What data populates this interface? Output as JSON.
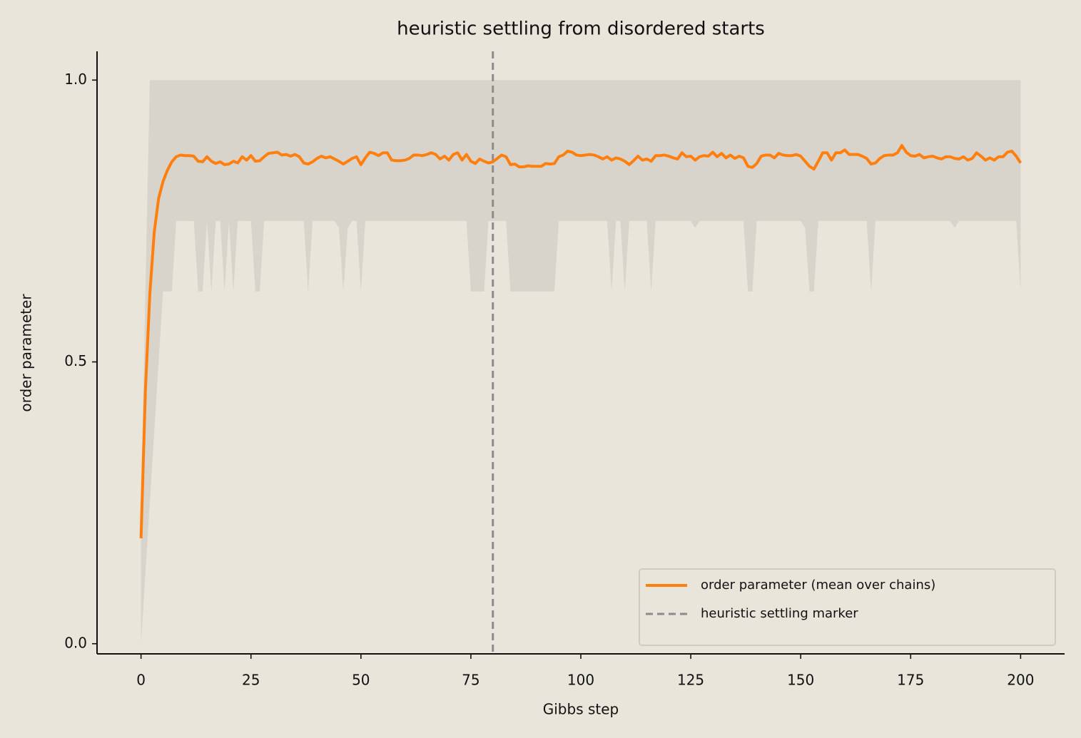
{
  "chart_data": {
    "type": "line",
    "title": "heuristic settling from disordered starts",
    "xlabel": "Gibbs step",
    "ylabel": "order parameter",
    "xlim": [
      -10,
      210
    ],
    "ylim": [
      -0.018,
      1.051
    ],
    "xticks": [
      0,
      25,
      50,
      75,
      100,
      125,
      150,
      175,
      200
    ],
    "yticks": [
      {
        "value": 0,
        "label": "0.0"
      },
      0.5,
      {
        "value": 1,
        "label": "1.0"
      }
    ],
    "legend": "lower right",
    "x": [
      0,
      1,
      2,
      3,
      4,
      5,
      6,
      7,
      8,
      9,
      10,
      11,
      12,
      13,
      14,
      15,
      16,
      17,
      18,
      19,
      20,
      21,
      22,
      23,
      24,
      25,
      26,
      27,
      28,
      29,
      30,
      31,
      32,
      33,
      34,
      35,
      36,
      37,
      38,
      39,
      40,
      41,
      42,
      43,
      44,
      45,
      46,
      47,
      48,
      49,
      50,
      51,
      52,
      53,
      54,
      55,
      56,
      57,
      58,
      59,
      60,
      61,
      62,
      63,
      64,
      65,
      66,
      67,
      68,
      69,
      70,
      71,
      72,
      73,
      74,
      75,
      76,
      77,
      78,
      79,
      80,
      81,
      82,
      83,
      84,
      85,
      86,
      87,
      88,
      89,
      90,
      91,
      92,
      93,
      94,
      95,
      96,
      97,
      98,
      99,
      100,
      101,
      102,
      103,
      104,
      105,
      106,
      107,
      108,
      109,
      110,
      111,
      112,
      113,
      114,
      115,
      116,
      117,
      118,
      119,
      120,
      121,
      122,
      123,
      124,
      125,
      126,
      127,
      128,
      129,
      130,
      131,
      132,
      133,
      134,
      135,
      136,
      137,
      138,
      139,
      140,
      141,
      142,
      143,
      144,
      145,
      146,
      147,
      148,
      149,
      150,
      151,
      152,
      153,
      154,
      155,
      156,
      157,
      158,
      159,
      160,
      161,
      162,
      163,
      164,
      165,
      166,
      167,
      168,
      169,
      170,
      171,
      172,
      173,
      174,
      175,
      176,
      177,
      178,
      179,
      180,
      181,
      182,
      183,
      184,
      185,
      186,
      187,
      188,
      189,
      190,
      191,
      192,
      193,
      194,
      195,
      196,
      197,
      198,
      199,
      200
    ],
    "series": [
      {
        "name": "order parameter (mean over chains)",
        "color": "#ff7f0e",
        "values": [
          0.187,
          0.45,
          0.62,
          0.73,
          0.79,
          0.82,
          0.84,
          0.855,
          0.864,
          0.867,
          0.866,
          0.866,
          0.865,
          0.856,
          0.855,
          0.864,
          0.856,
          0.852,
          0.855,
          0.85,
          0.851,
          0.856,
          0.853,
          0.864,
          0.858,
          0.866,
          0.856,
          0.857,
          0.864,
          0.87,
          0.871,
          0.872,
          0.867,
          0.868,
          0.865,
          0.868,
          0.864,
          0.853,
          0.851,
          0.855,
          0.861,
          0.865,
          0.862,
          0.864,
          0.86,
          0.856,
          0.851,
          0.856,
          0.861,
          0.864,
          0.85,
          0.862,
          0.872,
          0.87,
          0.866,
          0.871,
          0.871,
          0.858,
          0.857,
          0.857,
          0.858,
          0.861,
          0.867,
          0.867,
          0.866,
          0.868,
          0.871,
          0.868,
          0.86,
          0.865,
          0.858,
          0.868,
          0.871,
          0.858,
          0.868,
          0.856,
          0.852,
          0.86,
          0.856,
          0.853,
          0.855,
          0.861,
          0.867,
          0.864,
          0.85,
          0.851,
          0.846,
          0.846,
          0.848,
          0.847,
          0.847,
          0.847,
          0.852,
          0.851,
          0.852,
          0.864,
          0.867,
          0.874,
          0.872,
          0.867,
          0.866,
          0.867,
          0.868,
          0.867,
          0.864,
          0.86,
          0.864,
          0.858,
          0.862,
          0.86,
          0.856,
          0.85,
          0.857,
          0.865,
          0.858,
          0.86,
          0.856,
          0.866,
          0.866,
          0.867,
          0.865,
          0.862,
          0.86,
          0.871,
          0.864,
          0.865,
          0.858,
          0.864,
          0.866,
          0.865,
          0.872,
          0.864,
          0.87,
          0.862,
          0.867,
          0.861,
          0.865,
          0.862,
          0.847,
          0.845,
          0.852,
          0.865,
          0.867,
          0.867,
          0.862,
          0.87,
          0.867,
          0.866,
          0.866,
          0.868,
          0.865,
          0.856,
          0.847,
          0.842,
          0.856,
          0.871,
          0.871,
          0.858,
          0.871,
          0.871,
          0.876,
          0.868,
          0.868,
          0.868,
          0.865,
          0.861,
          0.851,
          0.853,
          0.861,
          0.866,
          0.867,
          0.867,
          0.871,
          0.884,
          0.872,
          0.866,
          0.865,
          0.868,
          0.862,
          0.864,
          0.865,
          0.862,
          0.86,
          0.864,
          0.864,
          0.861,
          0.86,
          0.864,
          0.858,
          0.861,
          0.871,
          0.865,
          0.858,
          0.862,
          0.858,
          0.864,
          0.864,
          0.872,
          0.874,
          0.865,
          0.853
        ]
      }
    ],
    "band": {
      "color": "#d8d3cb",
      "lower": [
        0,
        0.125,
        0.25,
        0.375,
        0.5,
        0.625,
        0.625,
        0.625,
        0.75,
        0.75,
        0.75,
        0.75,
        0.75,
        0.625,
        0.625,
        0.75,
        0.625,
        0.75,
        0.75,
        0.625,
        0.75,
        0.625,
        0.75,
        0.75,
        0.75,
        0.75,
        0.625,
        0.625,
        0.75,
        0.75,
        0.75,
        0.75,
        0.75,
        0.75,
        0.75,
        0.75,
        0.75,
        0.75,
        0.625,
        0.75,
        0.75,
        0.75,
        0.75,
        0.75,
        0.75,
        0.7375,
        0.625,
        0.7375,
        0.75,
        0.75,
        0.625,
        0.75,
        0.75,
        0.75,
        0.75,
        0.75,
        0.75,
        0.75,
        0.75,
        0.75,
        0.75,
        0.75,
        0.75,
        0.75,
        0.75,
        0.75,
        0.75,
        0.75,
        0.75,
        0.75,
        0.75,
        0.75,
        0.75,
        0.75,
        0.75,
        0.625,
        0.625,
        0.625,
        0.625,
        0.75,
        0.75,
        0.75,
        0.75,
        0.75,
        0.625,
        0.625,
        0.625,
        0.625,
        0.625,
        0.625,
        0.625,
        0.625,
        0.625,
        0.625,
        0.625,
        0.75,
        0.75,
        0.75,
        0.75,
        0.75,
        0.75,
        0.75,
        0.75,
        0.75,
        0.75,
        0.75,
        0.75,
        0.625,
        0.75,
        0.75,
        0.625,
        0.75,
        0.75,
        0.75,
        0.75,
        0.75,
        0.625,
        0.75,
        0.75,
        0.75,
        0.75,
        0.75,
        0.75,
        0.75,
        0.75,
        0.75,
        0.7375,
        0.75,
        0.75,
        0.75,
        0.75,
        0.75,
        0.75,
        0.75,
        0.75,
        0.75,
        0.75,
        0.75,
        0.625,
        0.625,
        0.75,
        0.75,
        0.75,
        0.75,
        0.75,
        0.75,
        0.75,
        0.75,
        0.75,
        0.75,
        0.75,
        0.7375,
        0.625,
        0.625,
        0.75,
        0.75,
        0.75,
        0.75,
        0.75,
        0.75,
        0.75,
        0.75,
        0.75,
        0.75,
        0.75,
        0.75,
        0.625,
        0.75,
        0.75,
        0.75,
        0.75,
        0.75,
        0.75,
        0.75,
        0.75,
        0.75,
        0.75,
        0.75,
        0.75,
        0.75,
        0.75,
        0.75,
        0.75,
        0.75,
        0.75,
        0.7375,
        0.75,
        0.75,
        0.75,
        0.75,
        0.75,
        0.75,
        0.75,
        0.75,
        0.75,
        0.75,
        0.75,
        0.75,
        0.75,
        0.75,
        0.625
      ],
      "upper": [
        0.25,
        0.625,
        1,
        1,
        1,
        1,
        1,
        1,
        1,
        1,
        1,
        1,
        1,
        1,
        1,
        1,
        1,
        1,
        1,
        1,
        1,
        1,
        1,
        1,
        1,
        1,
        1,
        1,
        1,
        1,
        1,
        1,
        1,
        1,
        1,
        1,
        1,
        1,
        1,
        1,
        1,
        1,
        1,
        1,
        1,
        1,
        1,
        1,
        1,
        1,
        1,
        1,
        1,
        1,
        1,
        1,
        1,
        1,
        1,
        1,
        1,
        1,
        1,
        1,
        1,
        1,
        1,
        1,
        1,
        1,
        1,
        1,
        1,
        1,
        1,
        1,
        1,
        1,
        1,
        1,
        1,
        1,
        1,
        1,
        1,
        1,
        1,
        1,
        1,
        1,
        1,
        1,
        1,
        1,
        1,
        1,
        1,
        1,
        1,
        1,
        1,
        1,
        1,
        1,
        1,
        1,
        1,
        1,
        1,
        1,
        1,
        1,
        1,
        1,
        1,
        1,
        1,
        1,
        1,
        1,
        1,
        1,
        1,
        1,
        1,
        1,
        1,
        1,
        1,
        1,
        1,
        1,
        1,
        1,
        1,
        1,
        1,
        1,
        1,
        1,
        1,
        1,
        1,
        1,
        1,
        1,
        1,
        1,
        1,
        1,
        1,
        1,
        1,
        1,
        1,
        1,
        1,
        1,
        1,
        1,
        1,
        1,
        1,
        1,
        1,
        1,
        1,
        1,
        1,
        1,
        1,
        1,
        1,
        1,
        1,
        1,
        1,
        1,
        1,
        1,
        1,
        1,
        1,
        1,
        1,
        1,
        1,
        1,
        1,
        1,
        1,
        1,
        1,
        1,
        1,
        1,
        1,
        1,
        1,
        1,
        1
      ]
    },
    "vline": {
      "x": 80,
      "name": "heuristic settling marker",
      "color": "#8c8c8c"
    }
  }
}
